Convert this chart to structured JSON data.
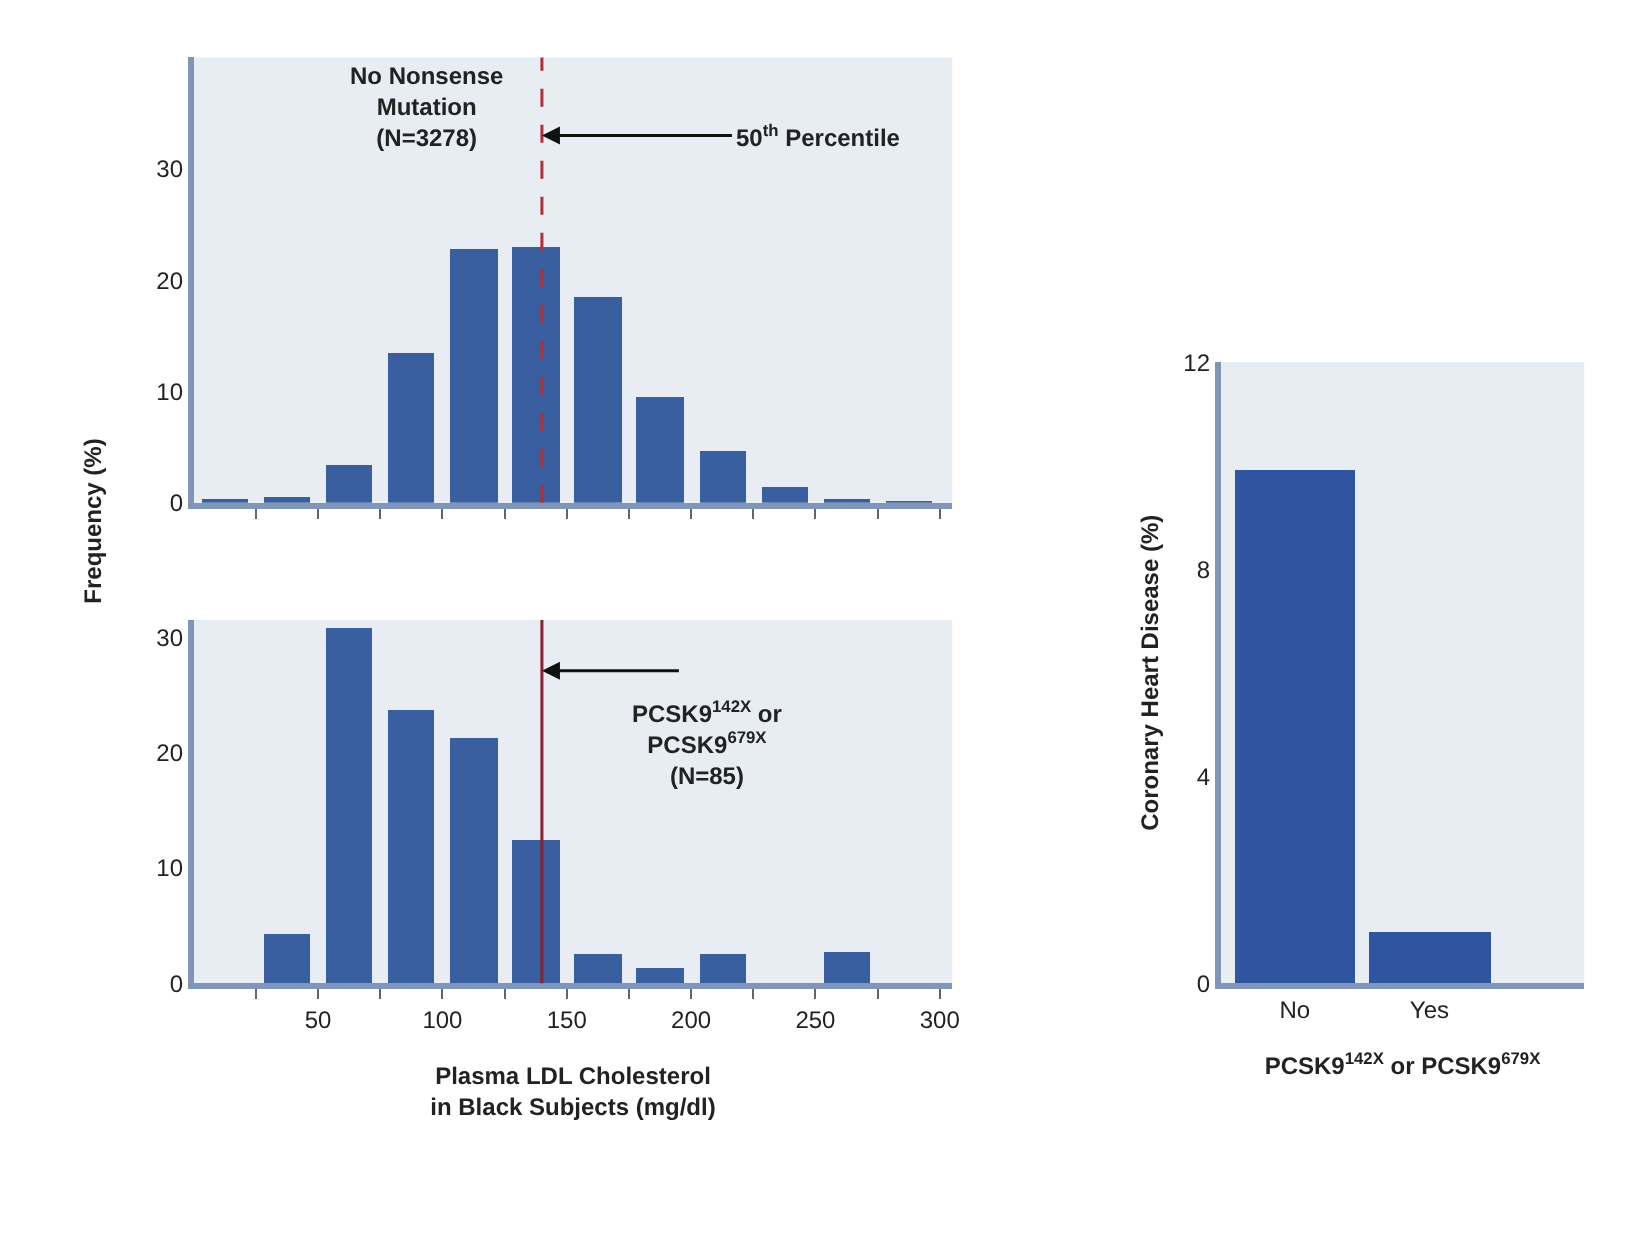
{
  "chart_data": [
    {
      "type": "histogram",
      "ylabel": "Frequency (%)",
      "bins": [
        0,
        25,
        50,
        75,
        100,
        125,
        150,
        175,
        200,
        225,
        250,
        275,
        300
      ],
      "values": [
        0.3,
        0.5,
        3.3,
        13.4,
        22.7,
        23,
        18.5,
        9.4,
        4.7,
        1.3,
        0.3,
        0.1
      ],
      "color": "#3a5fa0",
      "xlim": [
        0,
        305
      ],
      "xticks": [
        {
          "value": 25,
          "label": null
        },
        {
          "value": 50,
          "label": null
        },
        {
          "value": 75,
          "label": null
        },
        {
          "value": 100,
          "label": null
        },
        {
          "value": 125,
          "label": null
        },
        {
          "value": 150,
          "label": null
        },
        {
          "value": 175,
          "label": null
        },
        {
          "value": 200,
          "label": null
        },
        {
          "value": 225,
          "label": null
        },
        {
          "value": 250,
          "label": null
        },
        {
          "value": 275,
          "label": null
        },
        {
          "value": 300,
          "label": null
        }
      ],
      "ylim": [
        0,
        40
      ],
      "yticks": [
        0,
        10,
        20,
        30
      ],
      "tick_labels": "y",
      "grid": false,
      "legend": false,
      "ref_lines": [
        {
          "axis": "x",
          "value": 140,
          "label": null,
          "color": "#b0303a",
          "line_style": "dashed"
        }
      ],
      "annotations": [
        "No Nonsense\nMutation\n(N=3278)",
        {
          "text": "50$^{th}$ Percentile",
          "x": 140,
          "y": 33
        }
      ]
    },
    {
      "type": "histogram",
      "xlabel": "Plasma LDL Cholesterol\nin Black Subjects (mg/dl)",
      "bins": [
        0,
        25,
        50,
        75,
        100,
        125,
        150,
        175,
        200,
        225,
        250,
        275,
        300
      ],
      "values": [
        0,
        4.2,
        30.8,
        23.7,
        21.3,
        12.4,
        2.5,
        1.3,
        2.5,
        0,
        2.8,
        0
      ],
      "color": "#3a5fa0",
      "xlim": [
        0,
        305
      ],
      "xticks": [
        {
          "value": 25,
          "label": null
        },
        50,
        {
          "value": 75,
          "label": null
        },
        100,
        {
          "value": 125,
          "label": null
        },
        150,
        {
          "value": 175,
          "label": null
        },
        200,
        {
          "value": 225,
          "label": null
        },
        250,
        {
          "value": 275,
          "label": null
        },
        300
      ],
      "ylim": [
        0,
        31.5
      ],
      "yticks": [
        0,
        10,
        20,
        30
      ],
      "grid": false,
      "legend": false,
      "ref_lines": [
        {
          "axis": "x",
          "value": 140,
          "label": null,
          "color": "#8a2030",
          "line_style": "solid"
        }
      ],
      "annotations": [
        "PCSK9$^{142X}$ or\nPCSK9$^{679X}$\n(N=85)"
      ]
    },
    {
      "type": "bar",
      "xlabel": "PCSK9$^{142X}$ or PCSK9$^{679X}$",
      "ylabel": "Coronary Heart Disease (%)",
      "categories": [
        "No",
        "Yes"
      ],
      "values": [
        9.9,
        1.0
      ],
      "color": "#2f55a0",
      "ylim": [
        0,
        12
      ],
      "yticks": [
        0,
        4,
        8,
        12
      ],
      "grid": false,
      "legend": false
    }
  ]
}
